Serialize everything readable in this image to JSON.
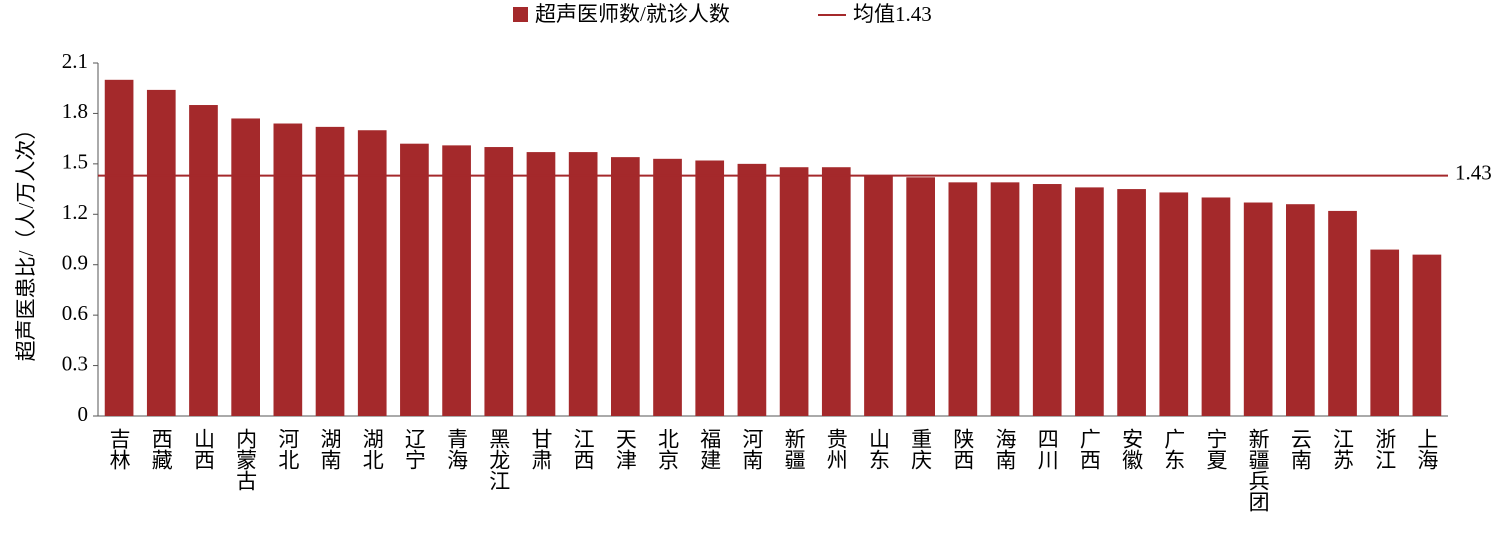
{
  "chart_data": {
    "type": "bar",
    "y_label": "超声医患比/（人/万人次）",
    "categories": [
      "吉林",
      "西藏",
      "山西",
      "内蒙古",
      "河北",
      "湖南",
      "湖北",
      "辽宁",
      "青海",
      "黑龙江",
      "甘肃",
      "江西",
      "天津",
      "北京",
      "福建",
      "河南",
      "新疆",
      "贵州",
      "山东",
      "重庆",
      "陕西",
      "海南",
      "四川",
      "广西",
      "安徽",
      "广东",
      "宁夏",
      "新疆兵团",
      "云南",
      "江苏",
      "浙江",
      "上海"
    ],
    "series": [
      {
        "name": "超声医师数/就诊人数",
        "color": "#a4292b",
        "values": [
          2.0,
          1.94,
          1.85,
          1.77,
          1.74,
          1.72,
          1.7,
          1.62,
          1.61,
          1.6,
          1.57,
          1.57,
          1.54,
          1.53,
          1.52,
          1.5,
          1.48,
          1.48,
          1.43,
          1.42,
          1.39,
          1.39,
          1.38,
          1.36,
          1.35,
          1.33,
          1.3,
          1.27,
          1.26,
          1.22,
          0.99,
          0.96
        ]
      }
    ],
    "mean_line": {
      "name": "均值1.43",
      "value": 1.43,
      "color": "#a4292b"
    },
    "ylim": [
      0,
      2.1
    ],
    "yticks": [
      0,
      0.3,
      0.6,
      0.9,
      1.2,
      1.5,
      1.8,
      2.1
    ],
    "grid": false
  }
}
